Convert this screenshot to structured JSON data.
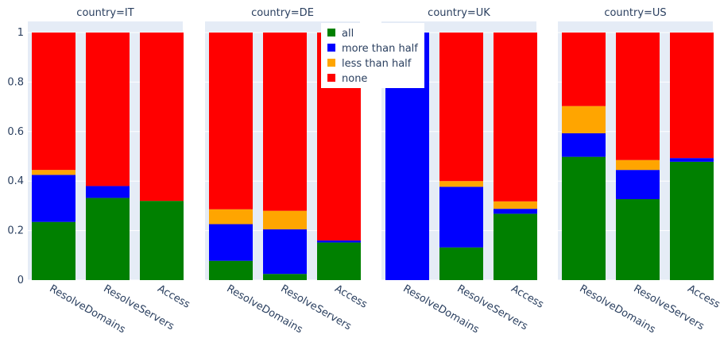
{
  "chart_data": {
    "type": "bar",
    "stacked": true,
    "facet_label_prefix": "country=",
    "categories": [
      "ResolveDomains",
      "ResolveServers",
      "Access"
    ],
    "y_ticks": [
      "0",
      "0.2",
      "0.4",
      "0.6",
      "0.8",
      "1"
    ],
    "ylim": [
      0,
      1
    ],
    "grid": true,
    "legend_placement": "top-center",
    "series_order": [
      "all",
      "more than half",
      "less than half",
      "none"
    ],
    "colors": {
      "all": "#008000",
      "more than half": "#0000ff",
      "less than half": "#ffa500",
      "none": "#ff0000",
      "panel_bg": "#e5ecf6",
      "grid": "#ffffff",
      "text": "#2a3f5f"
    },
    "facets": [
      {
        "country": "IT",
        "title": "country=IT",
        "series": [
          {
            "name": "all",
            "values": [
              0.235,
              0.332,
              0.32
            ]
          },
          {
            "name": "more than half",
            "values": [
              0.19,
              0.048,
              0.0
            ]
          },
          {
            "name": "less than half",
            "values": [
              0.02,
              0.0,
              0.0
            ]
          },
          {
            "name": "none",
            "values": [
              0.555,
              0.62,
              0.68
            ]
          }
        ]
      },
      {
        "country": "DE",
        "title": "country=DE",
        "series": [
          {
            "name": "all",
            "values": [
              0.078,
              0.025,
              0.152
            ]
          },
          {
            "name": "more than half",
            "values": [
              0.148,
              0.18,
              0.008
            ]
          },
          {
            "name": "less than half",
            "values": [
              0.06,
              0.075,
              0.0
            ]
          },
          {
            "name": "none",
            "values": [
              0.714,
              0.72,
              0.84
            ]
          }
        ]
      },
      {
        "country": "UK",
        "title": "country=UK",
        "series": [
          {
            "name": "all",
            "values": [
              0.0,
              0.132,
              0.268
            ]
          },
          {
            "name": "more than half",
            "values": [
              1.0,
              0.245,
              0.02
            ]
          },
          {
            "name": "less than half",
            "values": [
              0.0,
              0.023,
              0.03
            ]
          },
          {
            "name": "none",
            "values": [
              0.0,
              0.6,
              0.682
            ]
          }
        ]
      },
      {
        "country": "US",
        "title": "country=US",
        "series": [
          {
            "name": "all",
            "values": [
              0.498,
              0.327,
              0.478
            ]
          },
          {
            "name": "more than half",
            "values": [
              0.095,
              0.118,
              0.015
            ]
          },
          {
            "name": "less than half",
            "values": [
              0.11,
              0.04,
              0.0
            ]
          },
          {
            "name": "none",
            "values": [
              0.297,
              0.515,
              0.507
            ]
          }
        ]
      }
    ]
  }
}
